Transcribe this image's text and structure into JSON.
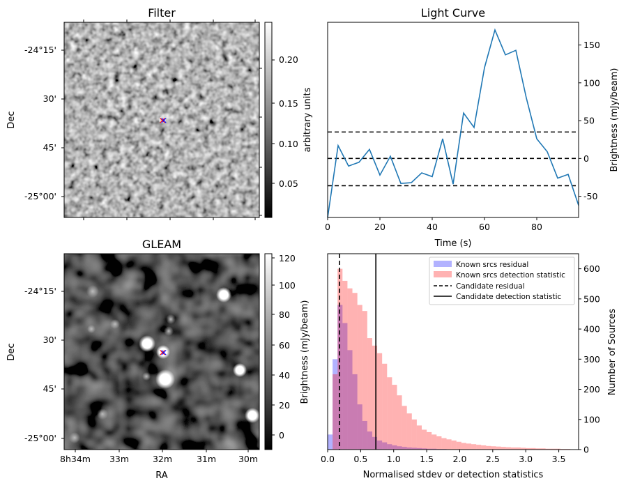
{
  "chart_data": [
    {
      "panel": "filter",
      "type": "heatmap",
      "title": "Filter",
      "ylabel": "Dec",
      "yticks": [
        "-24°15'",
        "30'",
        "45'",
        "-25°00'"
      ],
      "colorbar": {
        "label": "arbitrary units",
        "ticks": [
          "0.05",
          "0.10",
          "0.15",
          "0.20"
        ],
        "range": [
          0.01,
          0.24
        ],
        "colormap": "gray"
      },
      "marker": {
        "symbol": "×",
        "colors": [
          "#ff0000",
          "#0000ff"
        ]
      }
    },
    {
      "panel": "light_curve",
      "type": "line",
      "title": "Light Curve",
      "xlabel": "Time (s)",
      "ylabel": "Brightness (mJy/beam)",
      "xlim": [
        0,
        96
      ],
      "ylim": [
        -78,
        180
      ],
      "xticks": [
        "0",
        "20",
        "40",
        "60",
        "80"
      ],
      "yticks": [
        "-50",
        "0",
        "50",
        "100",
        "150"
      ],
      "x": [
        0,
        4,
        8,
        12,
        16,
        20,
        24,
        28,
        32,
        36,
        40,
        44,
        48,
        52,
        56,
        60,
        64,
        68,
        72,
        76,
        80,
        84,
        88,
        92,
        96
      ],
      "y": [
        -78,
        17,
        -10,
        -5,
        12,
        -22,
        3,
        -33,
        -32,
        -19,
        -24,
        26,
        -34,
        60,
        41,
        120,
        170,
        137,
        143,
        80,
        26,
        9,
        -26,
        -21,
        -62
      ],
      "line_color": "#1f77b4",
      "hlines": [
        35,
        0,
        -36
      ]
    },
    {
      "panel": "gleam",
      "type": "heatmap",
      "title": "GLEAM",
      "xlabel": "RA",
      "ylabel": "Dec",
      "xticks": [
        "8h34m",
        "33m",
        "32m",
        "31m",
        "30m"
      ],
      "yticks": [
        "-24°15'",
        "30'",
        "45'",
        "-25°00'"
      ],
      "colorbar": {
        "label": "Brightness (mJy/beam)",
        "ticks": [
          "0",
          "20",
          "40",
          "60",
          "80",
          "100",
          "120"
        ],
        "range": [
          -8,
          122
        ],
        "colormap": "gray"
      },
      "marker": {
        "symbol": "×",
        "colors": [
          "#ff0000",
          "#0000ff"
        ]
      }
    },
    {
      "panel": "histogram",
      "type": "bar",
      "xlabel": "Normalised stdev or detection statistics",
      "ylabel": "Number of Sources",
      "xlim": [
        0,
        3.8
      ],
      "ylim": [
        0,
        650
      ],
      "xticks": [
        "0.0",
        "0.5",
        "1.0",
        "1.5",
        "2.0",
        "2.5",
        "3.0",
        "3.5"
      ],
      "yticks": [
        "0",
        "100",
        "200",
        "300",
        "400",
        "500",
        "600"
      ],
      "bin_width": 0.075,
      "series": [
        {
          "name": "Known srcs residual",
          "color": "#0000ff",
          "alpha": 0.3,
          "bin_start": 0.0,
          "values": [
            50,
            300,
            480,
            420,
            330,
            250,
            150,
            95,
            60,
            42,
            30,
            24,
            18,
            14,
            11,
            9,
            7,
            6,
            5,
            4,
            3,
            3,
            2,
            2,
            1,
            1,
            1,
            1
          ]
        },
        {
          "name": "Known srcs detection statistic",
          "color": "#ff0000",
          "alpha": 0.3,
          "bin_start": 0.075,
          "values": [
            250,
            600,
            560,
            535,
            520,
            480,
            460,
            370,
            345,
            320,
            285,
            240,
            215,
            180,
            145,
            120,
            100,
            80,
            66,
            58,
            50,
            44,
            38,
            34,
            30,
            26,
            22,
            20,
            18,
            16,
            14,
            12,
            11,
            10,
            9,
            8,
            7,
            7,
            6,
            5,
            5,
            4,
            4,
            3,
            3,
            3,
            2,
            2
          ]
        }
      ],
      "vlines": [
        {
          "name": "Candidate residual",
          "x": 0.18,
          "style": "dashed"
        },
        {
          "name": "Candidate detection statistic",
          "x": 0.73,
          "style": "solid"
        }
      ],
      "legend_position": "top-right"
    }
  ]
}
